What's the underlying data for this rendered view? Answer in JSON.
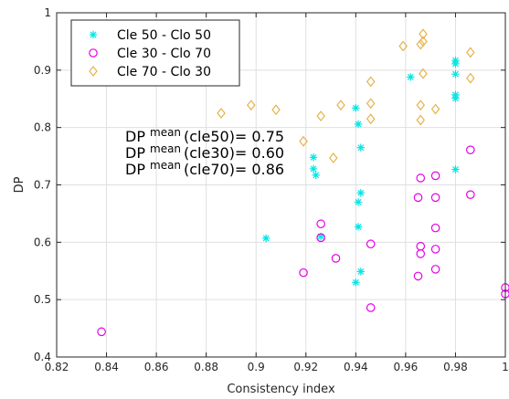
{
  "chart_data": {
    "type": "scatter",
    "title": "",
    "xlabel": "Consistency index",
    "ylabel": "DP",
    "xlim": [
      0.82,
      1.0
    ],
    "ylim": [
      0.4,
      1.0
    ],
    "xticks": [
      "0.82",
      "0.84",
      "0.86",
      "0.88",
      "0.9",
      "0.92",
      "0.94",
      "0.96",
      "0.98",
      "1"
    ],
    "yticks": [
      "0.4",
      "0.5",
      "0.6",
      "0.7",
      "0.8",
      "0.9",
      "1"
    ],
    "grid": true,
    "legend_position": "top-left",
    "series": [
      {
        "name": "Cle 50 - Clo 50",
        "marker": "asterisk",
        "color": "#00e5e5",
        "points": [
          [
            0.904,
            0.607
          ],
          [
            0.923,
            0.748
          ],
          [
            0.923,
            0.728
          ],
          [
            0.924,
            0.717
          ],
          [
            0.926,
            0.61
          ],
          [
            0.94,
            0.834
          ],
          [
            0.94,
            0.53
          ],
          [
            0.941,
            0.806
          ],
          [
            0.941,
            0.67
          ],
          [
            0.941,
            0.627
          ],
          [
            0.942,
            0.686
          ],
          [
            0.942,
            0.549
          ],
          [
            0.942,
            0.765
          ],
          [
            0.962,
            0.888
          ],
          [
            0.98,
            0.917
          ],
          [
            0.98,
            0.911
          ],
          [
            0.98,
            0.893
          ],
          [
            0.98,
            0.857
          ],
          [
            0.98,
            0.851
          ],
          [
            0.98,
            0.727
          ]
        ]
      },
      {
        "name": "Cle 30 - Clo 70",
        "marker": "circle",
        "color": "#e500e5",
        "points": [
          [
            0.838,
            0.444
          ],
          [
            0.919,
            0.547
          ],
          [
            0.926,
            0.632
          ],
          [
            0.926,
            0.608
          ],
          [
            0.932,
            0.572
          ],
          [
            0.946,
            0.597
          ],
          [
            0.946,
            0.486
          ],
          [
            0.965,
            0.678
          ],
          [
            0.965,
            0.541
          ],
          [
            0.966,
            0.712
          ],
          [
            0.966,
            0.593
          ],
          [
            0.966,
            0.58
          ],
          [
            0.972,
            0.716
          ],
          [
            0.972,
            0.678
          ],
          [
            0.972,
            0.625
          ],
          [
            0.972,
            0.588
          ],
          [
            0.972,
            0.553
          ],
          [
            0.986,
            0.761
          ],
          [
            0.986,
            0.683
          ],
          [
            1.0,
            0.521
          ],
          [
            1.0,
            0.51
          ]
        ]
      },
      {
        "name": "Cle 70 - Clo 30",
        "marker": "diamond",
        "color": "#e5b24c",
        "points": [
          [
            0.886,
            0.825
          ],
          [
            0.898,
            0.839
          ],
          [
            0.908,
            0.831
          ],
          [
            0.919,
            0.776
          ],
          [
            0.926,
            0.82
          ],
          [
            0.931,
            0.747
          ],
          [
            0.934,
            0.839
          ],
          [
            0.946,
            0.88
          ],
          [
            0.946,
            0.842
          ],
          [
            0.946,
            0.815
          ],
          [
            0.959,
            0.942
          ],
          [
            0.966,
            0.945
          ],
          [
            0.966,
            0.839
          ],
          [
            0.966,
            0.813
          ],
          [
            0.967,
            0.963
          ],
          [
            0.967,
            0.95
          ],
          [
            0.967,
            0.894
          ],
          [
            0.972,
            0.832
          ],
          [
            0.986,
            0.931
          ],
          [
            0.986,
            0.886
          ]
        ]
      }
    ],
    "annotations": [
      {
        "base": "DP",
        "sup": "mean",
        "text": "(cle50)= 0.75"
      },
      {
        "base": "DP",
        "sup": "mean",
        "text": "(cle30)= 0.60"
      },
      {
        "base": "DP",
        "sup": "mean",
        "text": "(cle70)= 0.86"
      }
    ]
  }
}
